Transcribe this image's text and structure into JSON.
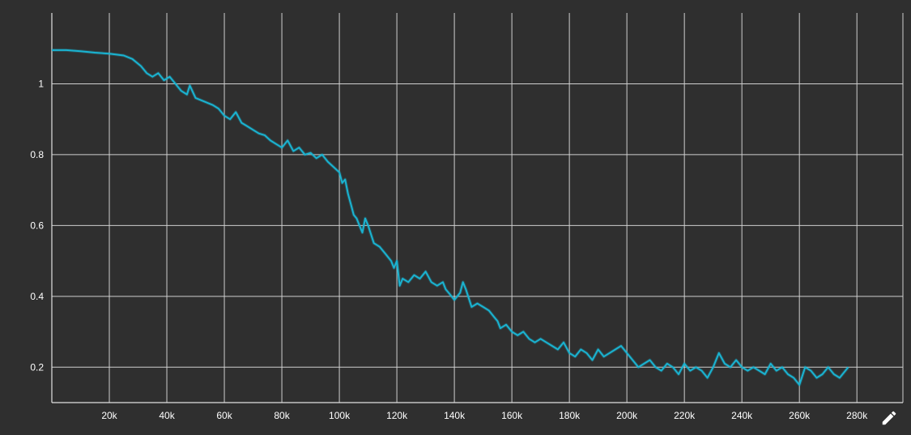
{
  "chart_data": {
    "type": "line",
    "title": "",
    "xlabel": "",
    "ylabel": "",
    "xlim": [
      0,
      296000
    ],
    "ylim": [
      0.1,
      1.2
    ],
    "grid": true,
    "x_ticks": [
      {
        "value": 20000,
        "label": "20k"
      },
      {
        "value": 40000,
        "label": "40k"
      },
      {
        "value": 60000,
        "label": "60k"
      },
      {
        "value": 80000,
        "label": "80k"
      },
      {
        "value": 100000,
        "label": "100k"
      },
      {
        "value": 120000,
        "label": "120k"
      },
      {
        "value": 140000,
        "label": "140k"
      },
      {
        "value": 160000,
        "label": "160k"
      },
      {
        "value": 180000,
        "label": "180k"
      },
      {
        "value": 200000,
        "label": "200k"
      },
      {
        "value": 220000,
        "label": "220k"
      },
      {
        "value": 240000,
        "label": "240k"
      },
      {
        "value": 260000,
        "label": "260k"
      },
      {
        "value": 280000,
        "label": "280k"
      }
    ],
    "y_ticks": [
      {
        "value": 0.2,
        "label": "0.2"
      },
      {
        "value": 0.4,
        "label": "0.4"
      },
      {
        "value": 0.6,
        "label": "0.6"
      },
      {
        "value": 0.8,
        "label": "0.8"
      },
      {
        "value": 1.0,
        "label": "1"
      }
    ],
    "series_color": "#1ab3d1",
    "grid_color": "#cfcfcf",
    "series": [
      {
        "x": [
          0,
          5000,
          10000,
          15000,
          20000,
          25000,
          28000,
          31000,
          33000,
          35000,
          37000,
          39000,
          41000,
          43000,
          45000,
          47000,
          48000,
          50000,
          53000,
          56000,
          58000,
          60000,
          62000,
          64000,
          66000,
          68000,
          70000,
          72000,
          74000,
          76000,
          78000,
          80000,
          82000,
          84000,
          86000,
          88000,
          90000,
          92000,
          94000,
          96000,
          98000,
          100000,
          101000,
          102000,
          103000,
          104000,
          105000,
          106000,
          107000,
          108000,
          109000,
          110000,
          112000,
          114000,
          116000,
          118000,
          119000,
          120000,
          121000,
          122000,
          124000,
          126000,
          128000,
          130000,
          132000,
          134000,
          136000,
          137000,
          138000,
          140000,
          142000,
          143000,
          144000,
          146000,
          148000,
          150000,
          152000,
          154000,
          155000,
          156000,
          158000,
          160000,
          162000,
          164000,
          166000,
          168000,
          170000,
          172000,
          174000,
          176000,
          178000,
          180000,
          182000,
          184000,
          186000,
          188000,
          190000,
          192000,
          194000,
          196000,
          198000,
          200000,
          202000,
          204000,
          206000,
          208000,
          210000,
          212000,
          214000,
          216000,
          218000,
          220000,
          222000,
          224000,
          226000,
          228000,
          230000,
          232000,
          234000,
          236000,
          238000,
          240000,
          242000,
          244000,
          246000,
          248000,
          250000,
          252000,
          254000,
          256000,
          258000,
          260000,
          262000,
          264000,
          266000,
          268000,
          270000,
          272000,
          274000,
          276000,
          277000
        ],
        "y": [
          1.095,
          1.095,
          1.092,
          1.088,
          1.085,
          1.08,
          1.07,
          1.05,
          1.03,
          1.02,
          1.03,
          1.01,
          1.02,
          1.0,
          0.98,
          0.97,
          0.995,
          0.96,
          0.95,
          0.94,
          0.93,
          0.91,
          0.9,
          0.92,
          0.89,
          0.88,
          0.87,
          0.86,
          0.855,
          0.84,
          0.83,
          0.82,
          0.84,
          0.81,
          0.82,
          0.8,
          0.805,
          0.79,
          0.8,
          0.78,
          0.765,
          0.75,
          0.72,
          0.73,
          0.69,
          0.66,
          0.63,
          0.62,
          0.6,
          0.58,
          0.62,
          0.6,
          0.55,
          0.54,
          0.52,
          0.5,
          0.48,
          0.5,
          0.43,
          0.45,
          0.44,
          0.46,
          0.45,
          0.47,
          0.44,
          0.43,
          0.44,
          0.42,
          0.41,
          0.39,
          0.41,
          0.44,
          0.42,
          0.37,
          0.38,
          0.37,
          0.36,
          0.34,
          0.33,
          0.31,
          0.32,
          0.3,
          0.29,
          0.3,
          0.28,
          0.27,
          0.28,
          0.27,
          0.26,
          0.25,
          0.27,
          0.24,
          0.23,
          0.25,
          0.24,
          0.22,
          0.25,
          0.23,
          0.24,
          0.25,
          0.26,
          0.24,
          0.22,
          0.2,
          0.21,
          0.22,
          0.2,
          0.19,
          0.21,
          0.2,
          0.18,
          0.21,
          0.19,
          0.2,
          0.19,
          0.17,
          0.2,
          0.24,
          0.21,
          0.2,
          0.22,
          0.2,
          0.19,
          0.2,
          0.19,
          0.18,
          0.21,
          0.19,
          0.2,
          0.18,
          0.17,
          0.15,
          0.2,
          0.19,
          0.17,
          0.18,
          0.2,
          0.18,
          0.17,
          0.19,
          0.2
        ]
      }
    ]
  }
}
